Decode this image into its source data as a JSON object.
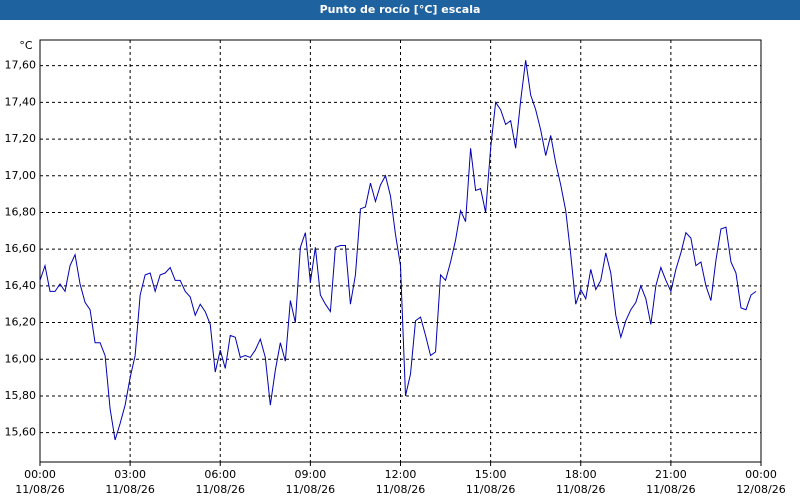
{
  "chart_data": {
    "type": "line",
    "title": "Punto de rocío [°C] escala",
    "y_unit": "°C",
    "x": [
      0,
      10,
      20,
      30,
      40,
      50,
      60,
      70,
      80,
      90,
      100,
      110,
      120,
      130,
      140,
      150,
      160,
      170,
      180,
      190,
      200,
      210,
      220,
      230,
      240,
      250,
      260,
      270,
      280,
      290,
      300,
      310,
      320,
      330,
      340,
      350,
      360,
      370,
      380,
      390,
      400,
      410,
      420,
      430,
      440,
      450,
      460,
      470,
      480,
      490,
      500,
      510,
      520,
      530,
      540,
      550,
      560,
      570,
      580,
      590,
      600,
      610,
      620,
      630,
      640,
      650,
      660,
      670,
      680,
      690,
      700,
      710,
      720,
      730,
      740,
      750,
      760,
      770,
      780,
      790,
      800,
      810,
      820,
      830,
      840,
      850,
      860,
      870,
      880,
      890,
      900,
      910,
      920,
      930,
      940,
      950,
      960,
      970,
      980,
      990,
      1000,
      1010,
      1020,
      1030,
      1040,
      1050,
      1060,
      1070,
      1080,
      1090,
      1100,
      1110,
      1120,
      1130,
      1140,
      1150,
      1160,
      1170,
      1180,
      1190,
      1200,
      1210,
      1220,
      1230,
      1240,
      1250,
      1260,
      1270,
      1280,
      1290,
      1300,
      1310,
      1320,
      1330,
      1340,
      1350,
      1360,
      1370,
      1380,
      1390,
      1400,
      1410,
      1420,
      1430
    ],
    "series": [
      {
        "name": "Punto de rocío",
        "color": "#0000b4",
        "values": [
          16.43,
          16.51,
          16.37,
          16.37,
          16.41,
          16.37,
          16.51,
          16.57,
          16.41,
          16.31,
          16.27,
          16.09,
          16.09,
          16.02,
          15.73,
          15.56,
          15.65,
          15.75,
          15.9,
          16.02,
          16.35,
          16.46,
          16.47,
          16.37,
          16.46,
          16.47,
          16.5,
          16.43,
          16.43,
          16.37,
          16.34,
          16.24,
          16.3,
          16.26,
          16.19,
          15.93,
          16.05,
          15.95,
          16.13,
          16.12,
          16.01,
          16.02,
          16.01,
          16.05,
          16.11,
          16.01,
          15.75,
          15.94,
          16.09,
          15.99,
          16.32,
          16.2,
          16.61,
          16.69,
          16.42,
          16.61,
          16.35,
          16.3,
          16.26,
          16.61,
          16.62,
          16.62,
          16.3,
          16.46,
          16.82,
          16.83,
          16.96,
          16.86,
          16.95,
          17.0,
          16.89,
          16.68,
          16.51,
          15.8,
          15.92,
          16.21,
          16.23,
          16.13,
          16.02,
          16.04,
          16.46,
          16.43,
          16.53,
          16.65,
          16.81,
          16.75,
          17.15,
          16.92,
          16.93,
          16.8,
          17.15,
          17.4,
          17.36,
          17.28,
          17.3,
          17.15,
          17.41,
          17.63,
          17.44,
          17.36,
          17.25,
          17.11,
          17.22,
          17.07,
          16.95,
          16.81,
          16.57,
          16.3,
          16.38,
          16.33,
          16.49,
          16.38,
          16.43,
          16.58,
          16.47,
          16.24,
          16.12,
          16.21,
          16.27,
          16.31,
          16.4,
          16.33,
          16.19,
          16.4,
          16.5,
          16.43,
          16.37,
          16.49,
          16.58,
          16.69,
          16.66,
          16.51,
          16.53,
          16.4,
          16.32,
          16.54,
          16.71,
          16.72,
          16.53,
          16.47,
          16.28,
          16.27,
          16.35,
          16.37
        ]
      }
    ],
    "xlim": [
      0,
      1440
    ],
    "xticks": [
      {
        "value": 0,
        "label": "00:00",
        "date": "11/08/26"
      },
      {
        "value": 180,
        "label": "03:00",
        "date": "11/08/26"
      },
      {
        "value": 360,
        "label": "06:00",
        "date": "11/08/26"
      },
      {
        "value": 540,
        "label": "09:00",
        "date": "11/08/26"
      },
      {
        "value": 720,
        "label": "12:00",
        "date": "11/08/26"
      },
      {
        "value": 900,
        "label": "15:00",
        "date": "11/08/26"
      },
      {
        "value": 1080,
        "label": "18:00",
        "date": "11/08/26"
      },
      {
        "value": 1260,
        "label": "21:00",
        "date": "11/08/26"
      },
      {
        "value": 1440,
        "label": "00:00",
        "date": "12/08/26"
      }
    ],
    "ylim": [
      15.44,
      17.74
    ],
    "yticks": [
      {
        "value": 15.6,
        "label": "15,60"
      },
      {
        "value": 15.8,
        "label": "15,80"
      },
      {
        "value": 16.0,
        "label": "16,00"
      },
      {
        "value": 16.2,
        "label": "16,20"
      },
      {
        "value": 16.4,
        "label": "16,40"
      },
      {
        "value": 16.6,
        "label": "16,60"
      },
      {
        "value": 16.8,
        "label": "16,80"
      },
      {
        "value": 17.0,
        "label": "17,00"
      },
      {
        "value": 17.2,
        "label": "17,20"
      },
      {
        "value": 17.4,
        "label": "17,40"
      },
      {
        "value": 17.6,
        "label": "17,60"
      }
    ],
    "grid": true
  }
}
